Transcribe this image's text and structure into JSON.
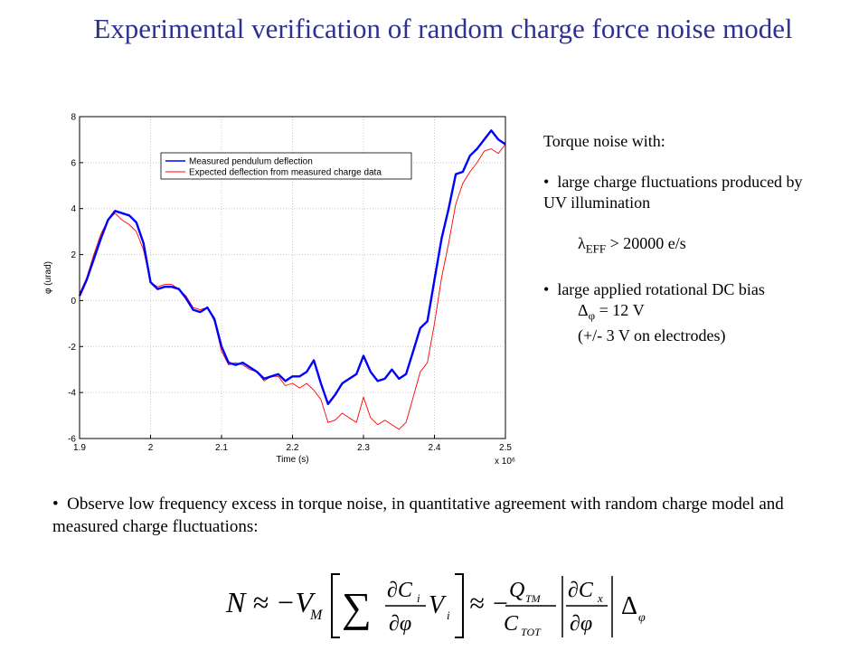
{
  "title": "Experimental verification of random charge force noise model",
  "side_panel": {
    "heading": "Torque noise with:",
    "bullet1": "large charge fluctuations produced by UV illumination",
    "lambda_symbol": "λ",
    "lambda_sub": "EFF",
    "lambda_value": "> 20000 e/s",
    "bullet2": "large applied rotational DC bias",
    "delta_symbol": "Δ",
    "delta_sub": "φ",
    "delta_value": "= 12 V",
    "electrodes": "(+/- 3 V on electrodes)"
  },
  "bottom_text": "Observe low frequency excess in torque noise, in quantitative agreement with random charge model and measured charge fluctuations:",
  "formula": {
    "lhs": "N ≈ −V",
    "lhs_sub": "M",
    "sum_numerator": "∂C",
    "sum_numerator_sub": "i",
    "sum_denominator": "∂φ",
    "sum_factor": "V",
    "sum_factor_sub": "i",
    "approx": "≈ −",
    "q_numerator": "Q",
    "q_numerator_sub": "TM",
    "q_denominator": "C",
    "q_denominator_sub": "TOT",
    "cx_numerator": "∂C",
    "cx_numerator_sub": "x",
    "cx_denominator": "∂φ",
    "delta": "Δ",
    "delta_sub": "φ"
  },
  "chart_data": {
    "type": "line",
    "xlabel": "Time (s)",
    "ylabel": "φ (urad)",
    "x_multiplier": "x 10⁶",
    "xlim": [
      1.9,
      2.5
    ],
    "ylim": [
      -6,
      8
    ],
    "xticks": [
      "1.9",
      "2",
      "2.1",
      "2.2",
      "2.3",
      "2.4",
      "2.5"
    ],
    "yticks": [
      "-6",
      "-4",
      "-2",
      "0",
      "2",
      "4",
      "6",
      "8"
    ],
    "grid": true,
    "legend_position": "top-left",
    "series": [
      {
        "name": "Measured pendulum deflection",
        "color": "#0000ff",
        "x": [
          1.9,
          1.91,
          1.92,
          1.93,
          1.94,
          1.95,
          1.96,
          1.97,
          1.98,
          1.99,
          2.0,
          2.01,
          2.02,
          2.03,
          2.04,
          2.05,
          2.06,
          2.07,
          2.08,
          2.09,
          2.1,
          2.11,
          2.12,
          2.13,
          2.14,
          2.15,
          2.16,
          2.17,
          2.18,
          2.19,
          2.2,
          2.21,
          2.22,
          2.23,
          2.24,
          2.25,
          2.26,
          2.27,
          2.28,
          2.29,
          2.3,
          2.31,
          2.32,
          2.33,
          2.34,
          2.35,
          2.36,
          2.37,
          2.38,
          2.39,
          2.4,
          2.41,
          2.42,
          2.43,
          2.44,
          2.45,
          2.46,
          2.47,
          2.48,
          2.49,
          2.5
        ],
        "y": [
          0.2,
          0.9,
          1.8,
          2.7,
          3.5,
          3.9,
          3.8,
          3.7,
          3.4,
          2.5,
          0.8,
          0.5,
          0.6,
          0.6,
          0.5,
          0.1,
          -0.4,
          -0.5,
          -0.3,
          -0.8,
          -2.0,
          -2.7,
          -2.8,
          -2.7,
          -2.9,
          -3.1,
          -3.4,
          -3.3,
          -3.2,
          -3.5,
          -3.3,
          -3.3,
          -3.1,
          -2.6,
          -3.6,
          -4.5,
          -4.1,
          -3.6,
          -3.4,
          -3.2,
          -2.4,
          -3.1,
          -3.5,
          -3.4,
          -3.0,
          -3.4,
          -3.2,
          -2.2,
          -1.2,
          -0.9,
          0.9,
          2.7,
          4.0,
          5.5,
          5.6,
          6.3,
          6.6,
          7.0,
          7.4,
          7.0,
          6.8
        ]
      },
      {
        "name": "Expected deflection from measured charge data",
        "color": "#ff0000",
        "x": [
          1.9,
          1.91,
          1.92,
          1.93,
          1.94,
          1.95,
          1.96,
          1.97,
          1.98,
          1.99,
          2.0,
          2.01,
          2.02,
          2.03,
          2.04,
          2.05,
          2.06,
          2.07,
          2.08,
          2.09,
          2.1,
          2.11,
          2.12,
          2.13,
          2.14,
          2.15,
          2.16,
          2.17,
          2.18,
          2.19,
          2.2,
          2.21,
          2.22,
          2.23,
          2.24,
          2.25,
          2.26,
          2.27,
          2.28,
          2.29,
          2.3,
          2.31,
          2.32,
          2.33,
          2.34,
          2.35,
          2.36,
          2.37,
          2.38,
          2.39,
          2.4,
          2.41,
          2.42,
          2.43,
          2.44,
          2.45,
          2.46,
          2.47,
          2.48,
          2.49,
          2.5
        ],
        "y": [
          0.3,
          1.0,
          2.0,
          2.9,
          3.5,
          3.8,
          3.5,
          3.3,
          3.0,
          2.2,
          0.8,
          0.6,
          0.7,
          0.7,
          0.5,
          0.2,
          -0.3,
          -0.4,
          -0.3,
          -0.9,
          -2.2,
          -2.8,
          -2.7,
          -2.8,
          -3.0,
          -3.1,
          -3.5,
          -3.3,
          -3.3,
          -3.7,
          -3.6,
          -3.8,
          -3.6,
          -3.9,
          -4.3,
          -5.3,
          -5.2,
          -4.9,
          -5.1,
          -5.3,
          -4.2,
          -5.1,
          -5.4,
          -5.2,
          -5.4,
          -5.6,
          -5.3,
          -4.2,
          -3.1,
          -2.7,
          -1.0,
          1.0,
          2.5,
          4.2,
          5.1,
          5.6,
          6.0,
          6.5,
          6.6,
          6.4,
          6.8
        ]
      }
    ]
  }
}
